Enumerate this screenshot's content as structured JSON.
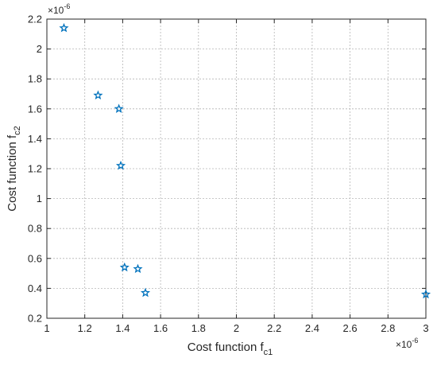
{
  "chart_data": {
    "type": "scatter",
    "title": "",
    "xlabel": "Cost function f",
    "xlabel_sub": "c1",
    "ylabel": "Cost function f",
    "ylabel_sub": "c2",
    "x_exponent": "×10",
    "x_exponent_power": "-6",
    "y_exponent": "×10",
    "y_exponent_power": "-6",
    "xlim": [
      1,
      3
    ],
    "ylim": [
      0.2,
      2.2
    ],
    "xticks": [
      "1",
      "1.2",
      "1.4",
      "1.6",
      "1.8",
      "2",
      "2.2",
      "2.4",
      "2.6",
      "2.8",
      "3"
    ],
    "yticks": [
      "0.2",
      "0.4",
      "0.6",
      "0.8",
      "1",
      "1.2",
      "1.4",
      "1.6",
      "1.8",
      "2",
      "2.2"
    ],
    "grid": true,
    "marker": "star",
    "marker_color": "#0072BD",
    "points": [
      {
        "x": 1.09,
        "y": 2.14
      },
      {
        "x": 1.27,
        "y": 1.69
      },
      {
        "x": 1.38,
        "y": 1.6
      },
      {
        "x": 1.39,
        "y": 1.22
      },
      {
        "x": 1.41,
        "y": 0.54
      },
      {
        "x": 1.48,
        "y": 0.53
      },
      {
        "x": 1.52,
        "y": 0.37
      },
      {
        "x": 3.0,
        "y": 0.36
      }
    ]
  }
}
